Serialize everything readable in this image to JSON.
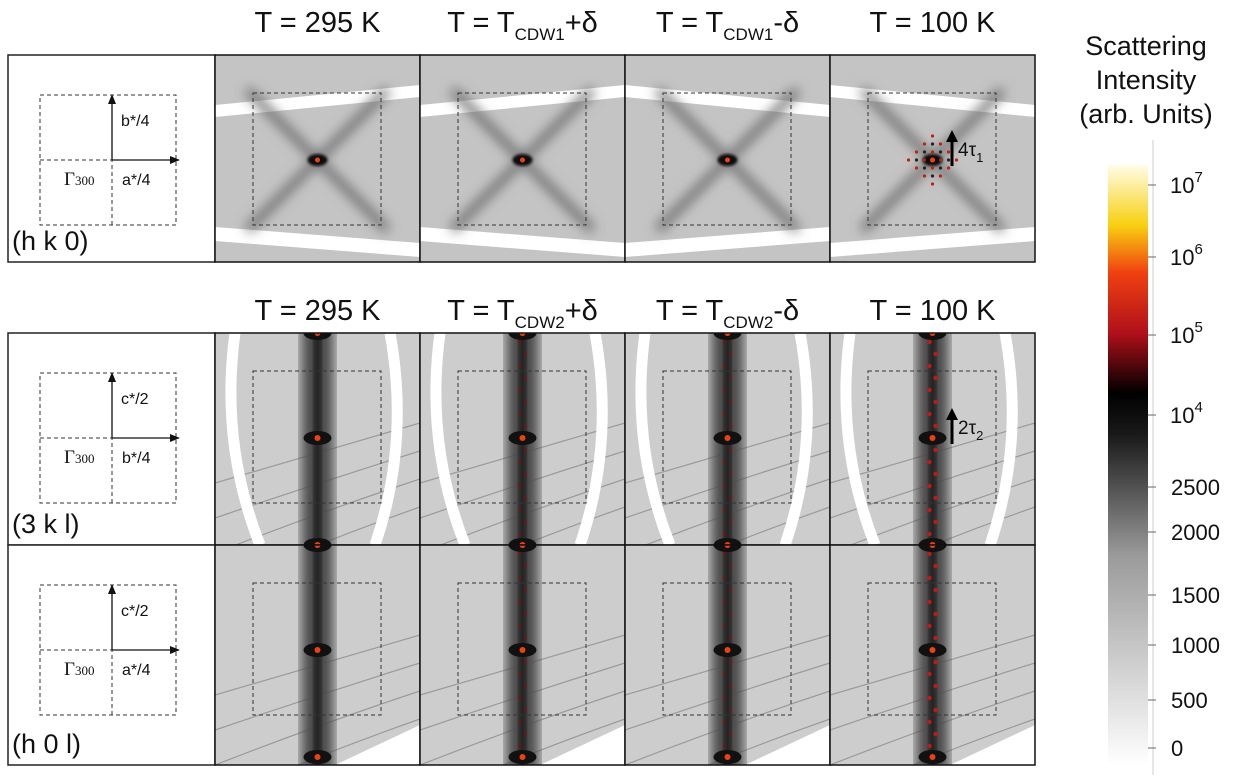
{
  "row1": {
    "headers": [
      [
        "T = 295 K"
      ],
      [
        "T = T",
        "CDW1",
        "+δ"
      ],
      [
        "T = T",
        "CDW1",
        "-δ"
      ],
      [
        "T = 100 K"
      ]
    ],
    "label": "(h k 0)",
    "schematic": {
      "vertical": "b*/4",
      "horizontal": "a*/4",
      "origin": "Γ",
      "origin_sub": "300"
    },
    "annotation": {
      "text": "4τ",
      "sub": "1"
    }
  },
  "row2": {
    "headers": [
      [
        "T = 295 K"
      ],
      [
        "T = T",
        "CDW2",
        "+δ"
      ],
      [
        "T = T",
        "CDW2",
        "-δ"
      ],
      [
        "T = 100 K"
      ]
    ],
    "label": "(3 k l)",
    "schematic": {
      "vertical": "c*/2",
      "horizontal": "b*/4",
      "origin": "Γ",
      "origin_sub": "300"
    },
    "annotation": {
      "text": "2τ",
      "sub": "2"
    }
  },
  "row3": {
    "label": "(h 0 l)",
    "schematic": {
      "vertical": "c*/2",
      "horizontal": "a*/4",
      "origin": "Γ",
      "origin_sub": "300"
    }
  },
  "colorbar": {
    "title": [
      "Scattering",
      "Intensity",
      "(arb. Units)"
    ],
    "log_ticks": [
      {
        "base": "10",
        "exp": "7"
      },
      {
        "base": "10",
        "exp": "6"
      },
      {
        "base": "10",
        "exp": "5"
      },
      {
        "base": "10",
        "exp": "4"
      }
    ],
    "linear_ticks": [
      "2500",
      "2000",
      "1500",
      "1000",
      "500",
      "0"
    ]
  }
}
